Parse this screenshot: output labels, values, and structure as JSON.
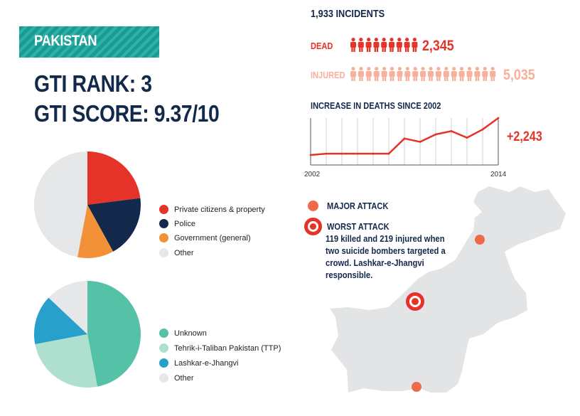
{
  "header": {
    "country": "PAKISTAN",
    "gti_rank": "GTI RANK: 3",
    "gti_score": "GTI SCORE: 9.37/10"
  },
  "colors": {
    "brand_teal": "#1a9a90",
    "navy": "#13294b",
    "red": "#e63329",
    "salmon": "#f7b09a",
    "orange": "#f29138",
    "grey": "#e6e7e8",
    "unknown": "#55c1a6",
    "ttp": "#aedfcf",
    "lej": "#27a0cc",
    "map_fill": "#e3e4e6",
    "major_dot": "#ee6b4a"
  },
  "stats": {
    "incidents": "1,933 INCIDENTS",
    "dead_label": "DEAD",
    "dead_value": "2,345",
    "injured_label": "INJURED",
    "injured_value": "5,035"
  },
  "map_legend": {
    "major": "MAJOR ATTACK",
    "worst": "WORST ATTACK",
    "worst_desc": "119 killed and 219 injured when two suicide bombers targeted a crowd. Lashkar-e-Jhangvi responsible."
  },
  "chart_data": [
    {
      "type": "line",
      "title": "INCREASE IN DEATHS SINCE 2002",
      "x": [
        2002,
        2003,
        2004,
        2005,
        2006,
        2007,
        2008,
        2009,
        2010,
        2011,
        2012,
        2013,
        2014
      ],
      "x_tick_labels": [
        "2002",
        "2014"
      ],
      "y": [
        0,
        80,
        80,
        80,
        80,
        80,
        1000,
        800,
        1250,
        1450,
        1050,
        1550,
        2243
      ],
      "annotation": "+2,243",
      "grid": "vertical"
    },
    {
      "type": "pie",
      "name": "targets",
      "labels": [
        "Private citizens & property",
        "Police",
        "Government (general)",
        "Other"
      ],
      "values": [
        23,
        19,
        11,
        47
      ],
      "colors": [
        "#e63329",
        "#13294b",
        "#f29138",
        "#e6e7e8"
      ]
    },
    {
      "type": "pie",
      "name": "groups",
      "labels": [
        "Unknown",
        "Tehrik-i-Taliban Pakistan (TTP)",
        "Lashkar-e-Jhangvi",
        "Other"
      ],
      "values": [
        47,
        25,
        15,
        13
      ],
      "colors": [
        "#55c1a6",
        "#aedfcf",
        "#27a0cc",
        "#e6e7e8"
      ]
    }
  ]
}
